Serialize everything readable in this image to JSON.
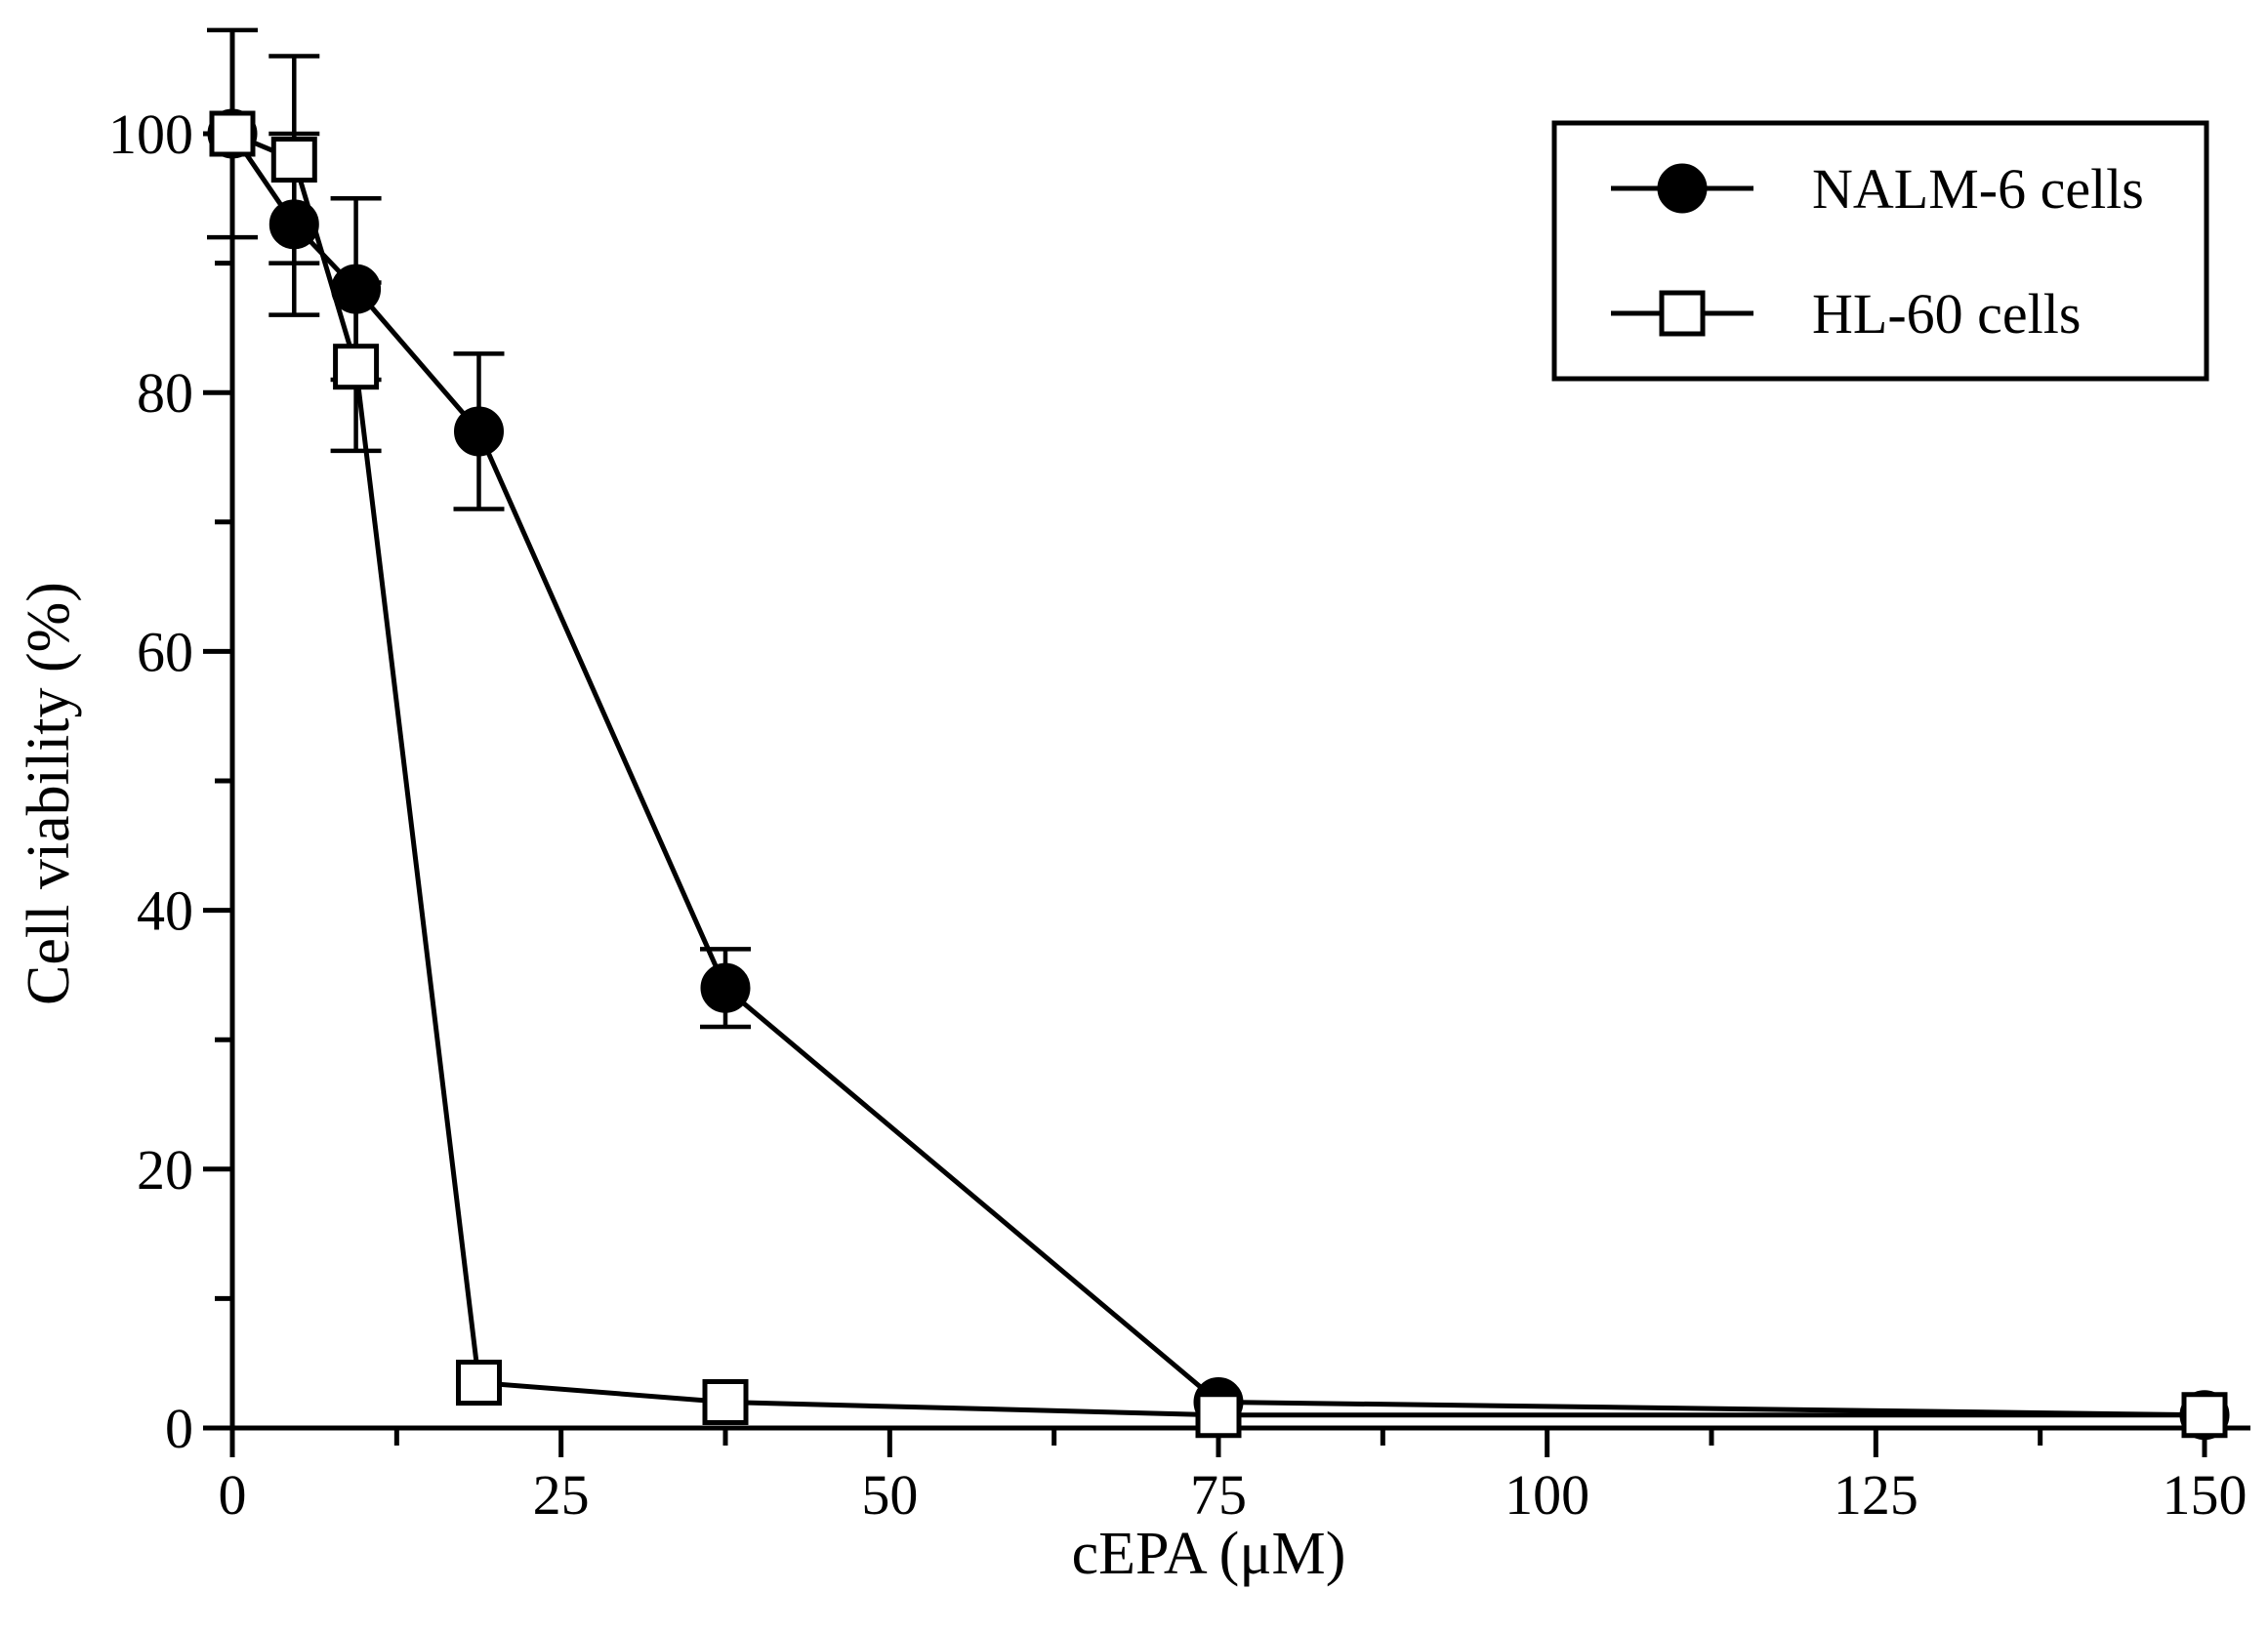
{
  "chart_data": {
    "type": "line",
    "title": "",
    "xlabel": "cEPA (μM)",
    "ylabel": "Cell viability (%)",
    "xlim": [
      0,
      150
    ],
    "ylim": [
      0,
      100
    ],
    "x_ticks": [
      0,
      25,
      50,
      75,
      100,
      125,
      150
    ],
    "x_minor_ticks": [
      12.5,
      37.5,
      62.5,
      87.5,
      112.5,
      137.5
    ],
    "y_ticks": [
      0,
      20,
      40,
      60,
      80,
      100
    ],
    "y_minor_ticks": [
      10,
      30,
      50,
      70,
      90
    ],
    "grid": false,
    "legend_position": "top-right",
    "legend_border": true,
    "series": [
      {
        "name": "NALM-6 cells",
        "marker": "filled-circle",
        "color": "#000000",
        "x": [
          0,
          4.7,
          9.4,
          18.75,
          37.5,
          75,
          150
        ],
        "y": [
          100,
          93,
          88,
          77,
          34,
          2,
          1
        ],
        "err": [
          8,
          7,
          7,
          6,
          3,
          0.5,
          0.3
        ]
      },
      {
        "name": "HL-60 cells",
        "marker": "open-square",
        "color": "#000000",
        "x": [
          0,
          4.7,
          9.4,
          18.75,
          37.5,
          75,
          150
        ],
        "y": [
          100,
          98,
          82,
          3.5,
          2,
          1,
          1
        ],
        "err": [
          0,
          8,
          6.5,
          0.5,
          0.4,
          0.3,
          0.2
        ]
      }
    ]
  }
}
